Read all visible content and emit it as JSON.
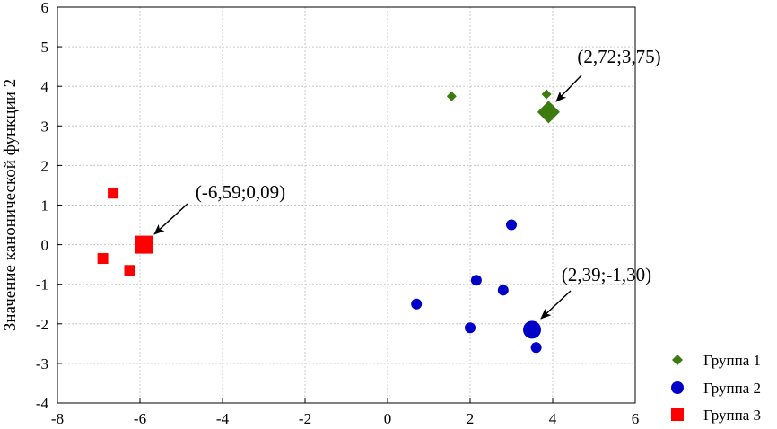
{
  "chart_data": {
    "type": "scatter",
    "ylabel": "Значение канонической функции 2",
    "xlabel": "",
    "xlim": [
      -8,
      6
    ],
    "ylim": [
      -4,
      6
    ],
    "xticks": [
      -8,
      -6,
      -4,
      -2,
      0,
      2,
      4,
      6
    ],
    "yticks": [
      -4,
      -3,
      -2,
      -1,
      0,
      1,
      2,
      3,
      4,
      5,
      6
    ],
    "grid": true,
    "legend_position": "bottom-right",
    "series": [
      {
        "name": "Группа 1",
        "marker": "diamond",
        "color": "#3d7a10",
        "points": [
          [
            1.55,
            3.75
          ],
          [
            3.85,
            3.8
          ]
        ],
        "centroid": [
          3.9,
          3.35
        ],
        "centroid_label": "(2,72;3,75)"
      },
      {
        "name": "Группа 2",
        "marker": "circle",
        "color": "#0000c8",
        "points": [
          [
            0.7,
            -1.5
          ],
          [
            2.0,
            -2.1
          ],
          [
            2.15,
            -0.9
          ],
          [
            2.8,
            -1.15
          ],
          [
            3.0,
            0.5
          ],
          [
            3.6,
            -2.6
          ]
        ],
        "centroid": [
          3.5,
          -2.15
        ],
        "centroid_label": "(2,39;-1,30)"
      },
      {
        "name": "Группа 3",
        "marker": "square",
        "color": "#ff0000",
        "points": [
          [
            -6.65,
            1.3
          ],
          [
            -6.9,
            -0.35
          ],
          [
            -6.25,
            -0.65
          ]
        ],
        "centroid": [
          -5.9,
          0.0
        ],
        "centroid_label": "(-6,59;0,09)"
      }
    ]
  }
}
